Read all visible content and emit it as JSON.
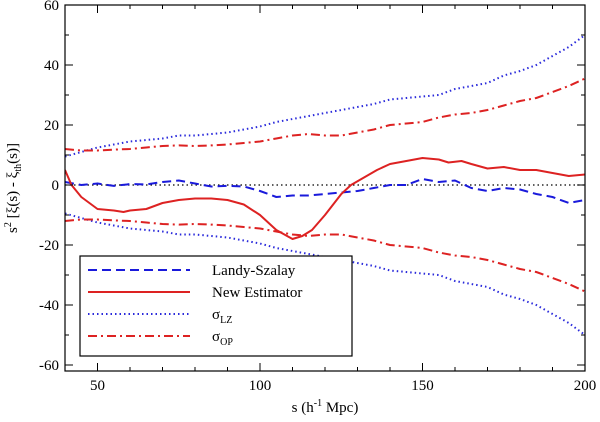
{
  "chart_data": {
    "type": "line",
    "title": "",
    "xlabel": "s (h⁻¹ Mpc)",
    "ylabel": "s² [ξ(s) - ξ_th(s)]",
    "ylabel_parts": {
      "pre": "s",
      "sup": "2",
      "mid": " [ξ(s) - ξ",
      "sub": "th",
      "post": "(s)]"
    },
    "xlabel_parts": {
      "pre": "s (h",
      "sup": "-1",
      "post": " Mpc)"
    },
    "xlim": [
      40,
      200
    ],
    "ylim": [
      -62,
      60
    ],
    "xticks": [
      50,
      100,
      150,
      200
    ],
    "yticks": [
      -60,
      -40,
      -20,
      0,
      20,
      40,
      60
    ],
    "xtick_labels": [
      "50",
      "100",
      "150",
      "200"
    ],
    "ytick_labels": [
      "-60",
      "-40",
      "-20",
      "0",
      "20",
      "40",
      "60"
    ],
    "legend_position": "bottom-left",
    "zero_line": true,
    "series": [
      {
        "name": "Landy-Szalay",
        "legend_label": "Landy-Szalay",
        "color": "#1a1adb",
        "style": "dashed",
        "x": [
          40,
          45,
          50,
          55,
          60,
          65,
          70,
          75,
          80,
          85,
          90,
          95,
          100,
          105,
          110,
          115,
          120,
          125,
          130,
          135,
          140,
          145,
          150,
          155,
          160,
          165,
          170,
          175,
          180,
          185,
          190,
          195,
          200
        ],
        "values": [
          1,
          0,
          0.5,
          -0.3,
          0.3,
          0.2,
          1,
          1.5,
          0.5,
          -0.5,
          -0.3,
          -0.5,
          -2,
          -4,
          -3.5,
          -3.5,
          -3,
          -2.5,
          -2,
          -1,
          0,
          0,
          2,
          1,
          1.5,
          -1,
          -2,
          -1,
          -1.5,
          -3,
          -4,
          -6,
          -5
        ]
      },
      {
        "name": "New Estimator",
        "legend_label": "New Estimator",
        "color": "#dd2222",
        "style": "solid",
        "x": [
          40,
          42,
          45,
          50,
          55,
          58,
          60,
          65,
          70,
          75,
          80,
          85,
          90,
          95,
          100,
          105,
          110,
          113,
          116,
          120,
          125,
          128,
          132,
          136,
          140,
          145,
          150,
          155,
          158,
          162,
          165,
          170,
          175,
          180,
          185,
          190,
          195,
          200
        ],
        "values": [
          5,
          0,
          -4,
          -8,
          -8.5,
          -9,
          -8.5,
          -8,
          -6,
          -5,
          -4.5,
          -4.5,
          -5,
          -6.5,
          -10,
          -15,
          -18,
          -17,
          -15,
          -10,
          -3,
          0,
          2.5,
          5,
          7,
          8,
          9,
          8.5,
          7.5,
          8,
          7,
          5.5,
          6,
          5,
          5,
          4,
          3,
          3.5
        ]
      },
      {
        "name": "sigma_LZ",
        "legend_label": "σ",
        "legend_sub": "LZ",
        "color": "#2a2adb",
        "style": "dotted",
        "mirror": true,
        "x": [
          40,
          45,
          50,
          55,
          60,
          65,
          70,
          75,
          80,
          85,
          90,
          95,
          100,
          105,
          110,
          115,
          120,
          125,
          130,
          135,
          140,
          145,
          150,
          155,
          160,
          165,
          170,
          175,
          180,
          185,
          190,
          195,
          200
        ],
        "values": [
          9.5,
          11,
          12.5,
          13.5,
          14.5,
          15,
          15.5,
          16.5,
          16.5,
          17,
          17.5,
          18.5,
          19.5,
          21,
          22,
          23,
          24,
          25,
          26,
          27,
          28.5,
          29,
          29.5,
          30,
          32,
          33,
          34,
          36.5,
          38,
          40,
          43,
          46,
          50
        ]
      },
      {
        "name": "sigma_OP",
        "legend_label": "σ",
        "legend_sub": "OP",
        "color": "#dd2222",
        "style": "dashdot",
        "mirror": true,
        "x": [
          40,
          45,
          50,
          55,
          60,
          65,
          70,
          75,
          80,
          85,
          90,
          95,
          100,
          105,
          110,
          115,
          120,
          125,
          130,
          135,
          140,
          145,
          150,
          155,
          160,
          165,
          170,
          175,
          180,
          185,
          190,
          195,
          200
        ],
        "values": [
          12,
          11.5,
          11.5,
          11.8,
          12,
          12.5,
          13,
          13.2,
          13,
          13.2,
          13.5,
          14,
          14.5,
          15.5,
          16.5,
          17,
          16.5,
          16.5,
          17.5,
          18.5,
          20,
          20.5,
          21,
          22.5,
          23.5,
          24,
          25,
          26.5,
          28,
          29,
          31,
          33,
          35.5
        ]
      }
    ]
  }
}
